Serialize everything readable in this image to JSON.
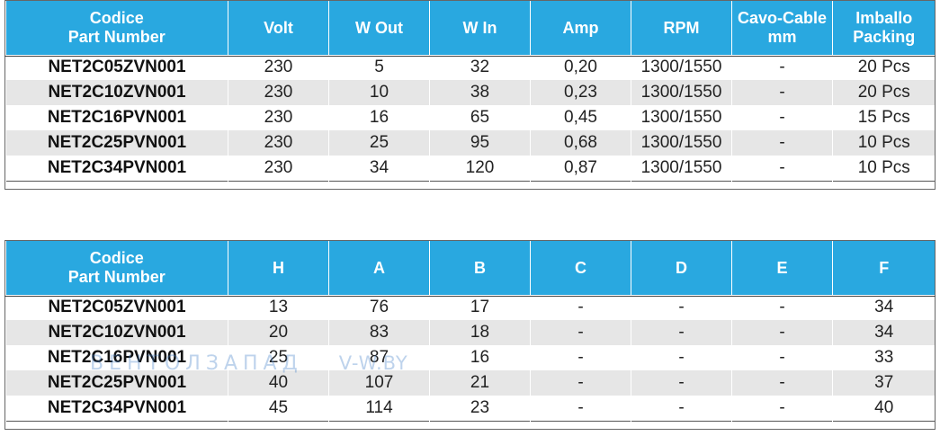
{
  "table1": {
    "headers": [
      {
        "line1": "Codice",
        "line2": "Part Number"
      },
      {
        "line1": "Volt",
        "line2": ""
      },
      {
        "line1": "W Out",
        "line2": ""
      },
      {
        "line1": "W In",
        "line2": ""
      },
      {
        "line1": "Amp",
        "line2": ""
      },
      {
        "line1": "RPM",
        "line2": ""
      },
      {
        "line1": "Cavo-Cable",
        "line2": "mm"
      },
      {
        "line1": "Imballo",
        "line2": "Packing"
      }
    ],
    "rows": [
      [
        "NET2C05ZVN001",
        "230",
        "5",
        "32",
        "0,20",
        "1300/1550",
        "-",
        "20 Pcs"
      ],
      [
        "NET2C10ZVN001",
        "230",
        "10",
        "38",
        "0,23",
        "1300/1550",
        "-",
        "20 Pcs"
      ],
      [
        "NET2C16PVN001",
        "230",
        "16",
        "65",
        "0,45",
        "1300/1550",
        "-",
        "15 Pcs"
      ],
      [
        "NET2C25PVN001",
        "230",
        "25",
        "95",
        "0,68",
        "1300/1550",
        "-",
        "10 Pcs"
      ],
      [
        "NET2C34PVN001",
        "230",
        "34",
        "120",
        "0,87",
        "1300/1550",
        "-",
        "10 Pcs"
      ]
    ]
  },
  "table2": {
    "headers": [
      {
        "line1": "Codice",
        "line2": "Part Number"
      },
      {
        "line1": "H",
        "line2": ""
      },
      {
        "line1": "A",
        "line2": ""
      },
      {
        "line1": "B",
        "line2": ""
      },
      {
        "line1": "C",
        "line2": ""
      },
      {
        "line1": "D",
        "line2": ""
      },
      {
        "line1": "E",
        "line2": ""
      },
      {
        "line1": "F",
        "line2": ""
      }
    ],
    "rows": [
      [
        "NET2C05ZVN001",
        "13",
        "76",
        "17",
        "-",
        "-",
        "-",
        "34"
      ],
      [
        "NET2C10ZVN001",
        "20",
        "83",
        "18",
        "-",
        "-",
        "-",
        "34"
      ],
      [
        "NET2C16PVN001",
        "25",
        "87",
        "16",
        "-",
        "-",
        "-",
        "33"
      ],
      [
        "NET2C25PVN001",
        "40",
        "107",
        "21",
        "-",
        "-",
        "-",
        "37"
      ],
      [
        "NET2C34PVN001",
        "45",
        "114",
        "23",
        "-",
        "-",
        "-",
        "40"
      ]
    ]
  },
  "watermark": {
    "brand": "ВЕНТОЛЗАПАД",
    "site": "V-W.BY"
  },
  "colors": {
    "header_bg": "#29a8e0",
    "stripe": "#e6e6e6"
  }
}
